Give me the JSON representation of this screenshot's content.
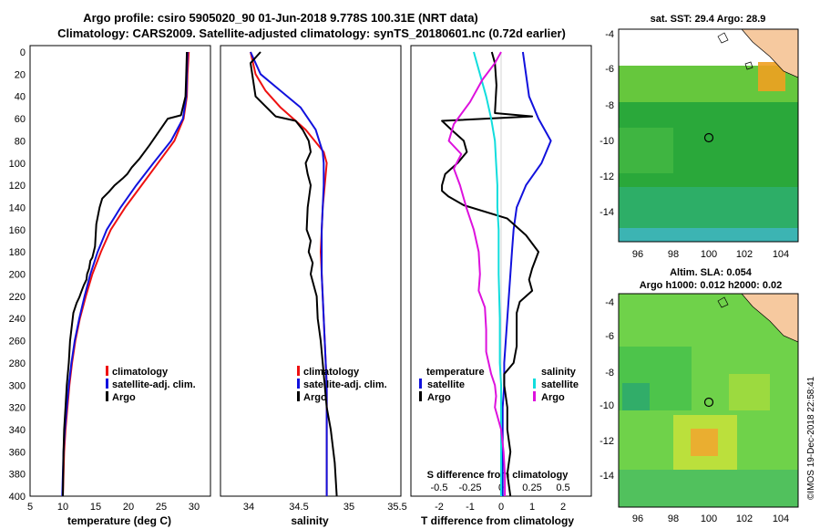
{
  "title_line1": "Argo profile: csiro 5905020_90 01-Jun-2018 9.778S 100.31E (NRT data)",
  "title_line2": "Climatology: CARS2009. Satellite-adjusted climatology: synTS_20180601.nc (0.72d earlier)",
  "side_stamp": "©IMOS 19-Dec-2018 22:58:41",
  "colors": {
    "climatology": "#ee1111",
    "satellite": "#1111dd",
    "argo": "#000000",
    "sat_t": "#11dddd",
    "sat_s": "#dd11dd"
  },
  "chart_data": [
    {
      "type": "line",
      "id": "temperature",
      "xlabel": "temperature (deg C)",
      "ylabel": "",
      "xlim": [
        5,
        32.5
      ],
      "ylim": [
        400,
        0
      ],
      "xticks": [
        "5",
        "10",
        "15",
        "20",
        "25",
        "30"
      ],
      "yticks": [
        "0",
        "20",
        "40",
        "60",
        "80",
        "100",
        "120",
        "140",
        "160",
        "180",
        "200",
        "220",
        "240",
        "260",
        "280",
        "300",
        "320",
        "340",
        "360",
        "380",
        "400"
      ],
      "legend": [
        "climatology",
        "satellite-adj. clim.",
        "Argo"
      ],
      "series": [
        {
          "name": "climatology",
          "color": "climatology",
          "x": [
            29.2,
            29.0,
            28.9,
            28.4,
            27.0,
            24.5,
            22.0,
            19.5,
            17.3,
            15.8,
            14.5,
            13.5,
            12.6,
            11.9,
            11.4,
            11.0,
            10.7,
            10.4,
            10.2,
            10.0
          ],
          "y": [
            0,
            20,
            40,
            60,
            80,
            100,
            120,
            140,
            160,
            180,
            200,
            220,
            240,
            260,
            280,
            300,
            320,
            340,
            360,
            400
          ]
        },
        {
          "name": "satellite-adj. clim.",
          "color": "satellite",
          "x": [
            29.0,
            28.9,
            28.8,
            28.3,
            26.5,
            23.8,
            21.2,
            18.8,
            16.7,
            15.3,
            14.2,
            13.3,
            12.5,
            11.8,
            11.3,
            10.9,
            10.6,
            10.3,
            10.1,
            9.9
          ],
          "y": [
            0,
            20,
            40,
            60,
            80,
            100,
            120,
            140,
            160,
            180,
            200,
            220,
            240,
            260,
            280,
            300,
            320,
            340,
            360,
            400
          ]
        },
        {
          "name": "Argo",
          "color": "argo",
          "x": [
            28.9,
            28.8,
            28.7,
            28.0,
            26.0,
            24.6,
            23.2,
            21.7,
            20.5,
            19.8,
            19.1,
            17.9,
            17.0,
            16.0,
            15.6,
            15.1,
            14.9,
            14.5,
            14.2,
            14.0,
            13.7,
            13.6,
            13.2,
            12.8,
            12.5,
            12.1,
            11.6,
            11.1,
            10.9,
            10.6,
            10.4,
            10.2,
            10.1,
            10.0
          ],
          "y": [
            0,
            20,
            40,
            57,
            60,
            72,
            84,
            96,
            104,
            110,
            114,
            120,
            126,
            132,
            140,
            155,
            175,
            185,
            188,
            195,
            200,
            205,
            210,
            216,
            221,
            226,
            235,
            260,
            280,
            300,
            320,
            340,
            360,
            400
          ]
        }
      ]
    },
    {
      "type": "line",
      "id": "salinity",
      "xlabel": "salinity",
      "xlim": [
        33.7,
        35.5
      ],
      "ylim": [
        400,
        0
      ],
      "xticks": [
        "34",
        "34.5",
        "35",
        "35.5"
      ],
      "legend": [
        "climatology",
        "satellite-adj. clim.",
        "Argo"
      ],
      "series": [
        {
          "name": "climatology",
          "color": "climatology",
          "x": [
            34.0,
            34.05,
            34.15,
            34.3,
            34.55,
            34.73,
            34.76,
            34.74,
            34.72,
            34.71,
            34.7,
            34.71,
            34.72,
            34.73,
            34.74,
            34.75,
            34.76,
            34.76,
            34.76,
            34.76
          ],
          "y": [
            0,
            20,
            35,
            50,
            70,
            90,
            100,
            120,
            140,
            160,
            180,
            200,
            220,
            240,
            260,
            280,
            300,
            320,
            360,
            400
          ]
        },
        {
          "name": "satellite-adj. clim.",
          "color": "satellite",
          "x": [
            34.0,
            34.1,
            34.3,
            34.5,
            34.65,
            34.72,
            34.73,
            34.73,
            34.72,
            34.71,
            34.71,
            34.71,
            34.72,
            34.73,
            34.74,
            34.75,
            34.76,
            34.76,
            34.76,
            34.76
          ],
          "y": [
            0,
            20,
            35,
            50,
            70,
            90,
            100,
            120,
            140,
            160,
            180,
            200,
            220,
            240,
            260,
            280,
            300,
            320,
            360,
            400
          ]
        },
        {
          "name": "Argo",
          "color": "argo",
          "x": [
            34.1,
            34.0,
            34.05,
            34.25,
            34.45,
            34.52,
            34.58,
            34.6,
            34.55,
            34.57,
            34.6,
            34.57,
            34.56,
            34.6,
            34.58,
            34.62,
            34.6,
            34.66,
            34.67,
            34.7,
            34.72,
            34.74,
            34.76,
            34.8,
            34.84,
            34.86
          ],
          "y": [
            0,
            10,
            40,
            58,
            62,
            70,
            80,
            90,
            100,
            110,
            120,
            140,
            160,
            170,
            180,
            190,
            200,
            220,
            240,
            260,
            280,
            300,
            320,
            340,
            370,
            400
          ]
        }
      ]
    },
    {
      "type": "line",
      "id": "difference",
      "xlabel": "T difference from climatology",
      "xlabel_top": "S difference from climatology",
      "xlim": [
        -2.9,
        2.9
      ],
      "ylim": [
        400,
        0
      ],
      "xticks": [
        "-2",
        "-1",
        "0",
        "1",
        "2"
      ],
      "xticks_top": [
        "-0.5",
        "-0.25",
        "0",
        "0.25",
        "0.5"
      ],
      "legend_t": [
        "temperature",
        "satellite",
        "Argo"
      ],
      "legend_s": [
        "salinity",
        "satellite",
        "Argo"
      ],
      "series": [
        {
          "name": "T satellite",
          "color": "satellite",
          "x": [
            0.7,
            0.8,
            0.9,
            1.2,
            1.6,
            1.3,
            0.8,
            0.5,
            0.4,
            0.35,
            0.3,
            0.25,
            0.2,
            0.15,
            0.1,
            0.1,
            0.05,
            0.05,
            0.05
          ],
          "y": [
            0,
            20,
            40,
            60,
            80,
            100,
            120,
            140,
            160,
            180,
            200,
            220,
            240,
            260,
            280,
            300,
            320,
            360,
            400
          ]
        },
        {
          "name": "T Argo",
          "color": "argo",
          "x": [
            -0.3,
            -0.2,
            -0.15,
            -0.2,
            1.0,
            -1.9,
            -1.6,
            -1.2,
            -1.1,
            -1.4,
            -1.8,
            -1.9,
            -1.9,
            -1.7,
            -1.2,
            0.2,
            0.8,
            1.2,
            1.0,
            0.9,
            1.0,
            0.6,
            0.5,
            0.5,
            0.5,
            0.4,
            0.1,
            0.1,
            0.2,
            0.2,
            0.3,
            0.2,
            0.3
          ],
          "y": [
            0,
            10,
            30,
            55,
            58,
            62,
            70,
            80,
            90,
            100,
            110,
            120,
            125,
            130,
            138,
            150,
            165,
            180,
            195,
            205,
            215,
            225,
            235,
            250,
            265,
            280,
            290,
            300,
            320,
            340,
            360,
            380,
            400
          ]
        },
        {
          "name": "S satellite",
          "color": "sat_t",
          "x": [
            -0.22,
            -0.17,
            -0.12,
            -0.08,
            -0.05,
            -0.04,
            -0.03,
            -0.03,
            -0.02,
            -0.02,
            -0.02,
            -0.01,
            -0.01,
            0.0,
            0.0,
            0.0,
            0.0
          ],
          "y": [
            0,
            20,
            40,
            60,
            80,
            100,
            120,
            140,
            160,
            180,
            200,
            240,
            280,
            300,
            320,
            360,
            400
          ]
        },
        {
          "name": "S Argo",
          "color": "sat_s",
          "x": [
            0.0,
            -0.05,
            -0.15,
            -0.25,
            -0.38,
            -0.42,
            -0.32,
            -0.38,
            -0.33,
            -0.28,
            -0.22,
            -0.18,
            -0.17,
            -0.18,
            -0.13,
            -0.12,
            -0.12,
            -0.08,
            -0.05,
            -0.04,
            -0.05,
            0.0,
            0.02,
            0.03,
            0.03,
            0.03
          ],
          "y": [
            0,
            10,
            25,
            45,
            65,
            80,
            92,
            105,
            120,
            140,
            160,
            180,
            200,
            215,
            230,
            250,
            270,
            290,
            300,
            310,
            320,
            340,
            360,
            380,
            390,
            400
          ]
        }
      ]
    }
  ],
  "maps": {
    "sst_title": "sat. SST: 29.4 Argo: 28.9",
    "sla_title1": "Altim. SLA: 0.054",
    "sla_title2": "Argo h1000: 0.012 h2000: 0.02",
    "lon_ticks": [
      "96",
      "98",
      "100",
      "102",
      "104"
    ],
    "lat_ticks": [
      "-4",
      "-6",
      "-8",
      "-10",
      "-12",
      "-14"
    ]
  }
}
